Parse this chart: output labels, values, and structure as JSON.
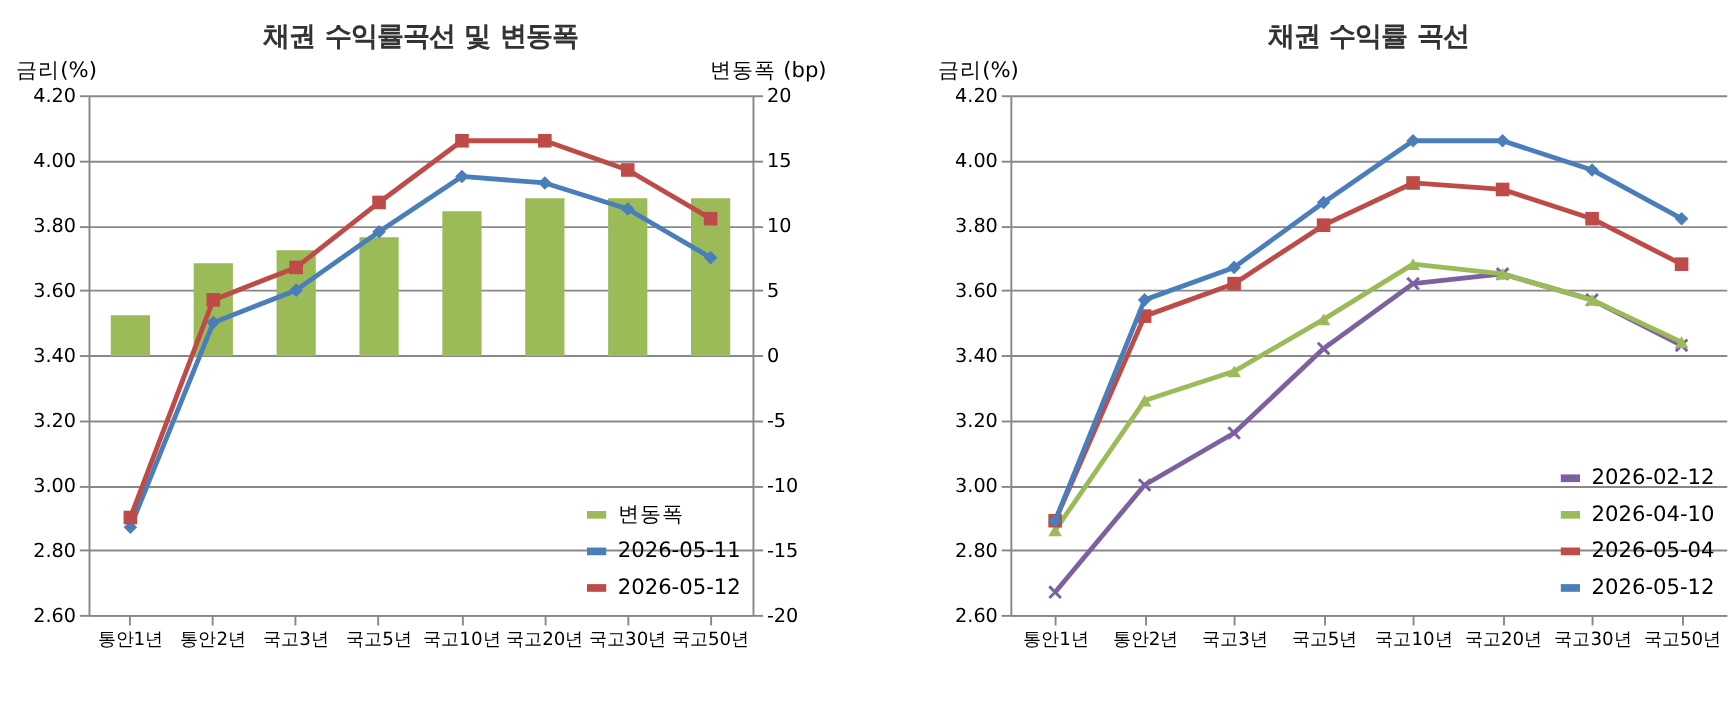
{
  "chart_data": [
    {
      "type": "line",
      "title": "채권 수익률곡선 및 변동폭",
      "ylabel": "금리(%)",
      "y2label": "변동폭 (bp)",
      "categories": [
        "통안1년",
        "통안2년",
        "국고3년",
        "국고5년",
        "국고10년",
        "국고20년",
        "국고30년",
        "국고50년"
      ],
      "ylim": [
        2.6,
        4.2
      ],
      "yticks": [
        {
          "value": 2.6,
          "label": "2.60"
        },
        {
          "value": 2.8,
          "label": "2.80"
        },
        {
          "value": 3.0,
          "label": "3.00"
        },
        {
          "value": 3.2,
          "label": "3.20"
        },
        {
          "value": 3.4,
          "label": "3.40"
        },
        {
          "value": 3.6,
          "label": "3.60"
        },
        {
          "value": 3.8,
          "label": "3.80"
        },
        {
          "value": 4.0,
          "label": "4.00"
        },
        {
          "value": 4.2,
          "label": "4.20"
        }
      ],
      "y2lim": [
        -20,
        20
      ],
      "y2ticks": [
        -20,
        -15,
        -10,
        -5,
        0,
        5,
        10,
        15,
        20
      ],
      "grid": "y",
      "legend": "bottom right",
      "series": [
        {
          "name": "변동폭",
          "type": "bar",
          "axis": "y2",
          "color": "#9bbb59",
          "values": [
            3,
            7,
            8,
            9,
            11,
            12,
            12,
            12
          ]
        },
        {
          "name": "2026-05-11",
          "marker": "diamond",
          "color": "#4a7ebb",
          "values": [
            2.87,
            3.5,
            3.6,
            3.78,
            3.95,
            3.93,
            3.85,
            3.7
          ]
        },
        {
          "name": "2026-05-12",
          "marker": "square",
          "color": "#be4b48",
          "values": [
            2.9,
            3.57,
            3.67,
            3.87,
            4.06,
            4.06,
            3.97,
            3.82
          ]
        }
      ]
    },
    {
      "type": "line",
      "title": "채권 수익률 곡선",
      "ylabel": "금리(%)",
      "categories": [
        "통안1년",
        "통안2년",
        "국고3년",
        "국고5년",
        "국고10년",
        "국고20년",
        "국고30년",
        "국고50년"
      ],
      "ylim": [
        2.6,
        4.2
      ],
      "yticks": [
        {
          "value": 2.6,
          "label": "2.60"
        },
        {
          "value": 2.8,
          "label": "2.80"
        },
        {
          "value": 3.0,
          "label": "3.00"
        },
        {
          "value": 3.2,
          "label": "3.20"
        },
        {
          "value": 3.4,
          "label": "3.40"
        },
        {
          "value": 3.6,
          "label": "3.60"
        },
        {
          "value": 3.8,
          "label": "3.80"
        },
        {
          "value": 4.0,
          "label": "4.00"
        },
        {
          "value": 4.2,
          "label": "4.20"
        }
      ],
      "grid": "y",
      "legend": "bottom right",
      "series": [
        {
          "name": "2026-02-12",
          "marker": "cross",
          "color": "#7d60a0",
          "values": [
            2.67,
            3.0,
            3.16,
            3.42,
            3.62,
            3.65,
            3.57,
            3.43
          ]
        },
        {
          "name": "2026-04-10",
          "marker": "triangle",
          "color": "#9bbb59",
          "values": [
            2.86,
            3.26,
            3.35,
            3.51,
            3.68,
            3.65,
            3.57,
            3.44
          ]
        },
        {
          "name": "2026-05-04",
          "marker": "square",
          "color": "#be4b48",
          "values": [
            2.89,
            3.52,
            3.62,
            3.8,
            3.93,
            3.91,
            3.82,
            3.68
          ]
        },
        {
          "name": "2026-05-12",
          "marker": "diamond",
          "color": "#4a7ebb",
          "values": [
            2.89,
            3.57,
            3.67,
            3.87,
            4.06,
            4.06,
            3.97,
            3.82
          ]
        }
      ]
    }
  ]
}
